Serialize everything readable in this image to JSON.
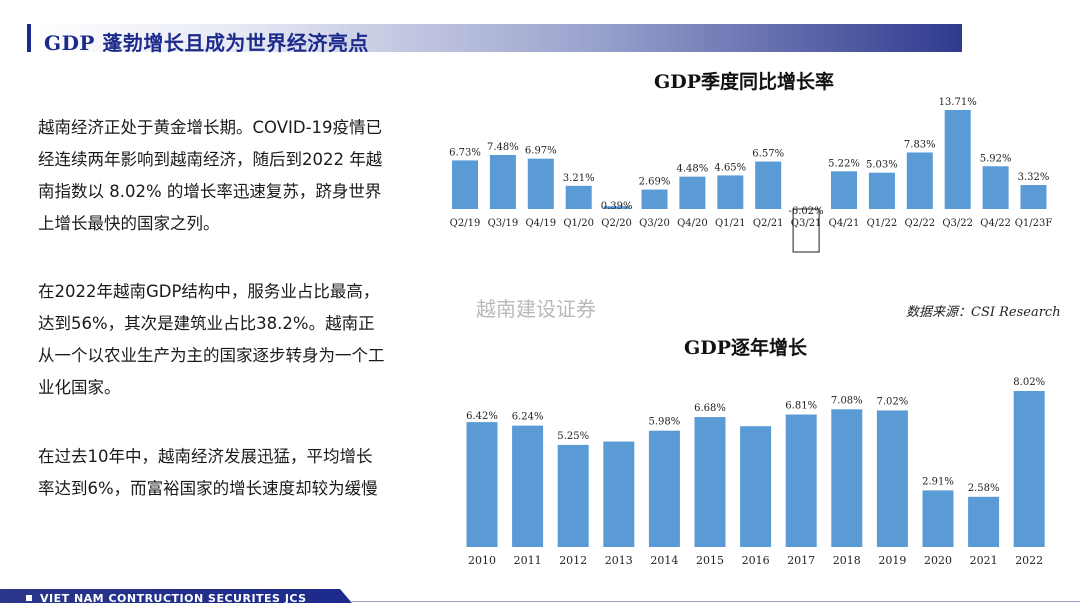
{
  "header": {
    "title": "GDP 蓬勃增长且成为世界经济亮点"
  },
  "paragraphs": {
    "p1": "越南经济正处于黄金增长期。COVID-19疫情已经连续两年影响到越南经济，随后到2022 年越南指数以 8.02% 的增长率迅速复苏，跻身世界上增长最快的国家之列。",
    "p2": "在2022年越南GDP结构中，服务业占比最高，达到56%，其次是建筑业占比38.2%。越南正从一个以农业生产为主的国家逐步转身为一个工业化国家。",
    "p3": "在过去10年中，越南经济发展迅猛，平均增长率达到6%，而富裕国家的增长速度却较为缓慢"
  },
  "watermark": "越南建设证券",
  "source": "数据来源：CSI Research",
  "footer": {
    "company": "VIET NAM CONTRUCTION SECURITES JCS"
  },
  "colors": {
    "bar": "#5b9bd5",
    "bar_outline": "#1f1f1f",
    "accent": "#1c2a8c"
  },
  "chart_data": [
    {
      "type": "bar",
      "title": "GDP季度同比增长率",
      "categories": [
        "Q2/19",
        "Q3/19",
        "Q4/19",
        "Q1/20",
        "Q2/20",
        "Q3/20",
        "Q4/20",
        "Q1/21",
        "Q2/21",
        "Q3/21",
        "Q4/21",
        "Q1/22",
        "Q2/22",
        "Q3/22",
        "Q4/22",
        "Q1/23F"
      ],
      "values": [
        6.73,
        7.48,
        6.97,
        3.21,
        0.39,
        2.69,
        4.48,
        4.65,
        6.57,
        -6.02,
        5.22,
        5.03,
        7.83,
        13.71,
        5.92,
        3.32
      ],
      "labels": [
        "6.73%",
        "7.48%",
        "6.97%",
        "3.21%",
        "0.39%",
        "2.69%",
        "4.48%",
        "4.65%",
        "6.57%",
        "-6.02%",
        "5.22%",
        "5.03%",
        "7.83%",
        "13.71%",
        "5.92%",
        "3.32%"
      ],
      "ylim": [
        -6.02,
        13.71
      ],
      "grid": false,
      "legend": "none"
    },
    {
      "type": "bar",
      "title": "GDP逐年增长",
      "categories": [
        "2010",
        "2011",
        "2012",
        "2013",
        "2014",
        "2015",
        "2016",
        "2017",
        "2018",
        "2019",
        "2020",
        "2021",
        "2022"
      ],
      "values": [
        6.42,
        6.24,
        5.25,
        5.42,
        5.98,
        6.68,
        6.21,
        6.81,
        7.08,
        7.02,
        2.91,
        2.58,
        8.02
      ],
      "labels": [
        "6.42%",
        "6.24%",
        "5.25%",
        "",
        "5.98%",
        "6.68%",
        "",
        "6.81%",
        "7.08%",
        "7.02%",
        "2.91%",
        "2.58%",
        "8.02%"
      ],
      "ylim": [
        0,
        8.02
      ],
      "grid": false,
      "legend": "none"
    }
  ]
}
